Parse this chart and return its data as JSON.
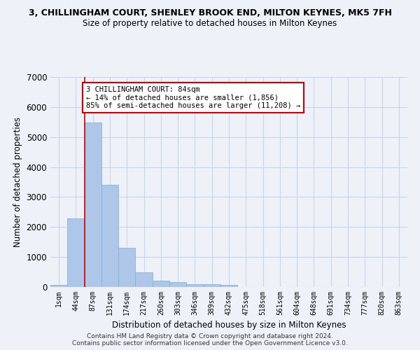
{
  "title": "3, CHILLINGHAM COURT, SHENLEY BROOK END, MILTON KEYNES, MK5 7FH",
  "subtitle": "Size of property relative to detached houses in Milton Keynes",
  "xlabel": "Distribution of detached houses by size in Milton Keynes",
  "ylabel": "Number of detached properties",
  "footer_line1": "Contains HM Land Registry data © Crown copyright and database right 2024.",
  "footer_line2": "Contains public sector information licensed under the Open Government Licence v3.0.",
  "bar_labels": [
    "1sqm",
    "44sqm",
    "87sqm",
    "131sqm",
    "174sqm",
    "217sqm",
    "260sqm",
    "303sqm",
    "346sqm",
    "389sqm",
    "432sqm",
    "475sqm",
    "518sqm",
    "561sqm",
    "604sqm",
    "648sqm",
    "691sqm",
    "734sqm",
    "777sqm",
    "820sqm",
    "863sqm"
  ],
  "bar_values": [
    75,
    2280,
    5480,
    3400,
    1300,
    500,
    200,
    170,
    95,
    100,
    60,
    0,
    0,
    0,
    0,
    0,
    0,
    0,
    0,
    0,
    0
  ],
  "bar_color": "#aec6e8",
  "bar_edge_color": "#7bafd4",
  "grid_color": "#c8d4e8",
  "background_color": "#eef2f8",
  "vline_color": "#cc0000",
  "annotation_text": "3 CHILLINGHAM COURT: 84sqm\n← 14% of detached houses are smaller (1,856)\n85% of semi-detached houses are larger (11,208) →",
  "annotation_box_color": "#ffffff",
  "annotation_box_edge": "#cc0000",
  "ylim": [
    0,
    7000
  ],
  "yticks": [
    0,
    1000,
    2000,
    3000,
    4000,
    5000,
    6000,
    7000
  ]
}
